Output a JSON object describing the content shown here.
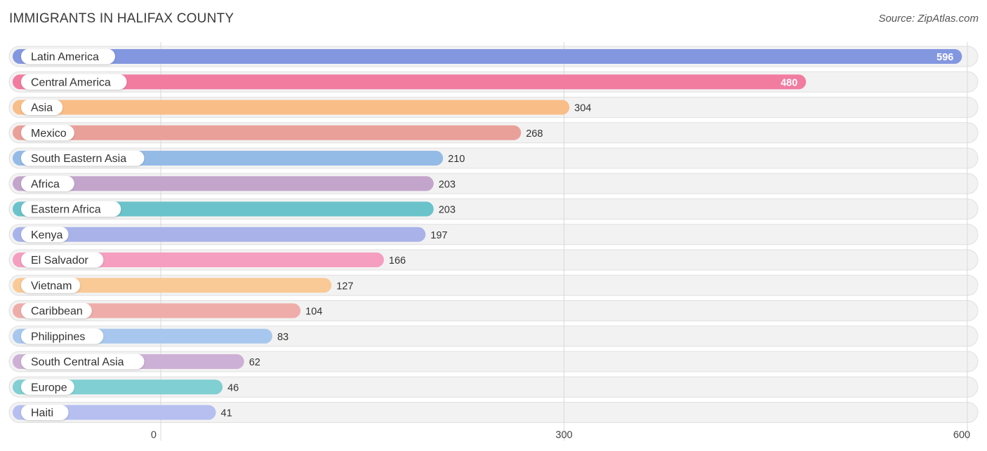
{
  "title": "IMMIGRANTS IN HALIFAX COUNTY",
  "source": "Source: ZipAtlas.com",
  "chart_data": {
    "type": "bar",
    "orientation": "horizontal",
    "title": "IMMIGRANTS IN HALIFAX COUNTY",
    "xlabel": "",
    "ylabel": "",
    "xlim": [
      0,
      600
    ],
    "xticks": [
      0,
      300,
      600
    ],
    "grid": true,
    "categories": [
      "Latin America",
      "Central America",
      "Asia",
      "Mexico",
      "South Eastern Asia",
      "Africa",
      "Eastern Africa",
      "Kenya",
      "El Salvador",
      "Vietnam",
      "Caribbean",
      "Philippines",
      "South Central Asia",
      "Europe",
      "Haiti"
    ],
    "values": [
      596,
      480,
      304,
      268,
      210,
      203,
      203,
      197,
      166,
      127,
      104,
      83,
      62,
      46,
      41
    ],
    "colors": [
      "#8397e0",
      "#f27ba0",
      "#f9bd87",
      "#e9a098",
      "#94bae6",
      "#c3a5cb",
      "#6ac3ca",
      "#a9b3e9",
      "#f69ebf",
      "#f9c996",
      "#efadaa",
      "#a8c7ee",
      "#cdb0d5",
      "#80cfd3",
      "#b6bff0"
    ]
  }
}
